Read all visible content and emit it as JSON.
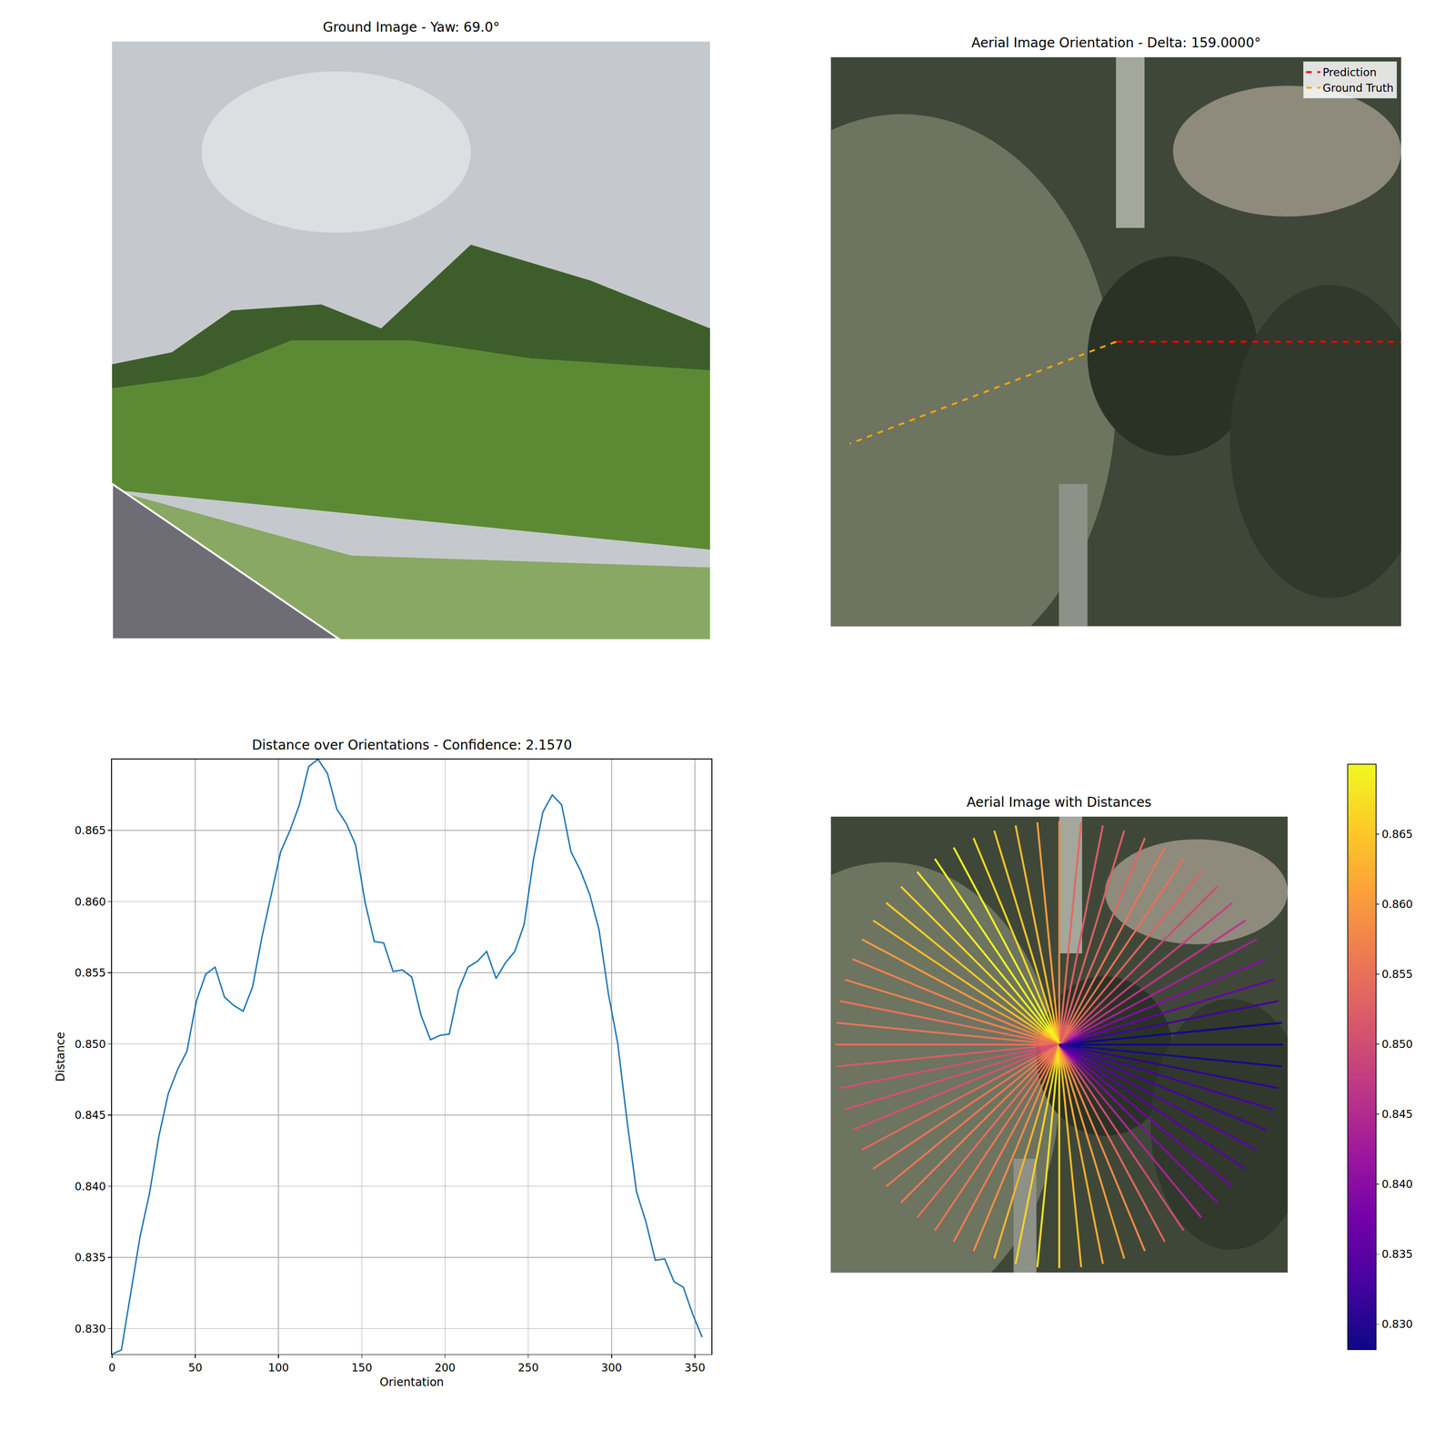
{
  "chart_data": [
    {
      "type": "image",
      "title": "Ground Image - Yaw: 69.0°",
      "tick_labels": false
    },
    {
      "type": "orientation",
      "title": "Aerial Image Orientation - Delta: 159.0000°",
      "legend": "upper right",
      "tick_labels": false,
      "series": [
        {
          "name": "Prediction",
          "color": "#ff0000",
          "line_style": "dashed",
          "angle": 0
        },
        {
          "name": "Ground Truth",
          "color": "#ffa500",
          "line_style": "dashed",
          "angle": 201
        }
      ]
    },
    {
      "type": "line",
      "title": "Distance over Orientations - Confidence: 2.1570",
      "x_label": "Orientation",
      "y_label": "Distance",
      "color": "#1f77b4",
      "grid": true,
      "x": [
        0,
        5.625,
        11.25,
        16.875,
        22.5,
        28.125,
        33.75,
        39.375,
        45,
        50.625,
        56.25,
        61.875,
        67.5,
        73.125,
        78.75,
        84.375,
        90,
        95.625,
        101.25,
        106.875,
        112.5,
        118.125,
        123.75,
        129.375,
        135,
        140.625,
        146.25,
        151.875,
        157.5,
        163.125,
        168.75,
        174.375,
        180,
        185.625,
        191.25,
        196.875,
        202.5,
        208.125,
        213.75,
        219.375,
        225,
        230.625,
        236.25,
        241.875,
        247.5,
        253.125,
        258.75,
        264.375,
        270,
        275.625,
        281.25,
        286.875,
        292.5,
        298.125,
        303.75,
        309.375,
        315,
        320.625,
        326.25,
        331.875,
        337.5,
        343.125,
        348.75,
        354.375
      ],
      "values": [
        0.8282,
        0.8285,
        0.8325,
        0.8365,
        0.8395,
        0.8435,
        0.8465,
        0.8482,
        0.8495,
        0.853,
        0.8549,
        0.8554,
        0.8533,
        0.8527,
        0.8523,
        0.854,
        0.8575,
        0.8605,
        0.8635,
        0.865,
        0.8668,
        0.8695,
        0.87,
        0.869,
        0.8665,
        0.8655,
        0.864,
        0.86,
        0.8572,
        0.8571,
        0.8551,
        0.8552,
        0.8547,
        0.852,
        0.8503,
        0.8506,
        0.8507,
        0.8538,
        0.8554,
        0.8558,
        0.8565,
        0.8546,
        0.8557,
        0.8565,
        0.8584,
        0.863,
        0.8663,
        0.8675,
        0.8668,
        0.8635,
        0.8622,
        0.8605,
        0.858,
        0.8535,
        0.85,
        0.8445,
        0.8396,
        0.8375,
        0.8348,
        0.8349,
        0.8333,
        0.8329,
        0.831,
        0.8294
      ],
      "xlim": [
        0,
        360
      ],
      "xticks": [
        0,
        50,
        100,
        150,
        200,
        250,
        300,
        350
      ],
      "ylim": [
        0.8282,
        0.87
      ],
      "yticks": [
        {
          "value": 0.83,
          "label": "0.830"
        },
        0.835,
        {
          "value": 0.84,
          "label": "0.840"
        },
        0.845,
        {
          "value": 0.85,
          "label": "0.850"
        },
        0.855,
        {
          "value": 0.86,
          "label": "0.860"
        },
        0.865
      ]
    },
    {
      "type": "rays",
      "title": "Aerial Image with Distances",
      "tick_labels": false,
      "orientations": [
        0,
        5.625,
        11.25,
        16.875,
        22.5,
        28.125,
        33.75,
        39.375,
        45,
        50.625,
        56.25,
        61.875,
        67.5,
        73.125,
        78.75,
        84.375,
        90,
        95.625,
        101.25,
        106.875,
        112.5,
        118.125,
        123.75,
        129.375,
        135,
        140.625,
        146.25,
        151.875,
        157.5,
        163.125,
        168.75,
        174.375,
        180,
        185.625,
        191.25,
        196.875,
        202.5,
        208.125,
        213.75,
        219.375,
        225,
        230.625,
        236.25,
        241.875,
        247.5,
        253.125,
        258.75,
        264.375,
        270,
        275.625,
        281.25,
        286.875,
        292.5,
        298.125,
        303.75,
        309.375,
        315,
        320.625,
        326.25,
        331.875,
        337.5,
        343.125,
        348.75,
        354.375
      ],
      "values": [
        0.8282,
        0.8285,
        0.8325,
        0.8365,
        0.8395,
        0.8435,
        0.8465,
        0.8482,
        0.8495,
        0.853,
        0.8549,
        0.8554,
        0.8533,
        0.8527,
        0.8523,
        0.854,
        0.8575,
        0.8605,
        0.8635,
        0.865,
        0.8668,
        0.8695,
        0.87,
        0.869,
        0.8665,
        0.8655,
        0.864,
        0.86,
        0.8572,
        0.8571,
        0.8551,
        0.8552,
        0.8547,
        0.852,
        0.8503,
        0.8506,
        0.8507,
        0.8538,
        0.8554,
        0.8558,
        0.8565,
        0.8546,
        0.8557,
        0.8565,
        0.8584,
        0.863,
        0.8663,
        0.8675,
        0.8668,
        0.8635,
        0.8622,
        0.8605,
        0.858,
        0.8535,
        0.85,
        0.8445,
        0.8396,
        0.8375,
        0.8348,
        0.8349,
        0.8333,
        0.8329,
        0.831,
        0.8294
      ],
      "colorbar": {
        "range": [
          0.8282,
          0.87
        ],
        "ticks": [
          {
            "value": 0.83,
            "label": "0.830"
          },
          0.835,
          {
            "value": 0.84,
            "label": "0.840"
          },
          0.845,
          {
            "value": 0.85,
            "label": "0.850"
          },
          0.855,
          {
            "value": 0.86,
            "label": "0.860"
          },
          0.865
        ]
      }
    }
  ]
}
